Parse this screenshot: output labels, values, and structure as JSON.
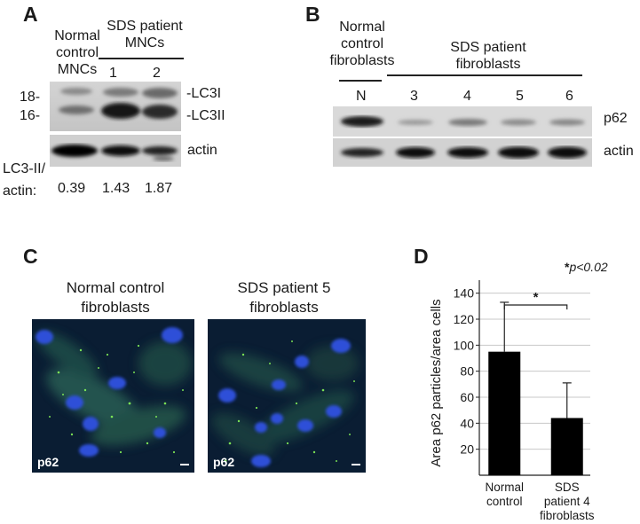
{
  "panel_a": {
    "letter": "A",
    "control_label": [
      "Normal",
      "control",
      "MNCs"
    ],
    "patient_header": [
      "SDS patient",
      "MNCs"
    ],
    "lanes": [
      "1",
      "2"
    ],
    "mw_markers": [
      "18-",
      "16-"
    ],
    "band_labels": [
      "-LC3I",
      "-LC3II"
    ],
    "actin_label": "actin",
    "ratio_label": [
      "LC3-II/",
      "actin:"
    ],
    "ratios": [
      "0.39",
      "1.43",
      "1.87"
    ]
  },
  "panel_b": {
    "letter": "B",
    "control_label": [
      "Normal",
      "control",
      "fibroblasts"
    ],
    "patient_header": [
      "SDS patient",
      "fibroblasts"
    ],
    "lanes": [
      "N",
      "3",
      "4",
      "5",
      "6"
    ],
    "band_labels": [
      "p62",
      "actin"
    ]
  },
  "panel_c": {
    "letter": "C",
    "left_title": [
      "Normal control",
      "fibroblasts"
    ],
    "right_title": [
      "SDS patient 5",
      "fibroblasts"
    ],
    "stain_label": "p62"
  },
  "panel_d": {
    "letter": "D",
    "pvalue_star": "*",
    "pvalue_text": "p<0.02",
    "significance": "*"
  },
  "chart_data": {
    "type": "bar",
    "categories": [
      "Normal control",
      "SDS patient 4 fibroblasts"
    ],
    "category_lines": [
      [
        "Normal",
        "control"
      ],
      [
        "SDS",
        "patient 4",
        "fibroblasts"
      ]
    ],
    "values": [
      95,
      44
    ],
    "errors": [
      38,
      27
    ],
    "ylabel": "Area p62 particles/area cells",
    "ylim": [
      0,
      150
    ],
    "yticks": [
      20,
      40,
      60,
      80,
      100,
      120,
      140
    ],
    "grid": true,
    "bar_color": "#000000"
  }
}
